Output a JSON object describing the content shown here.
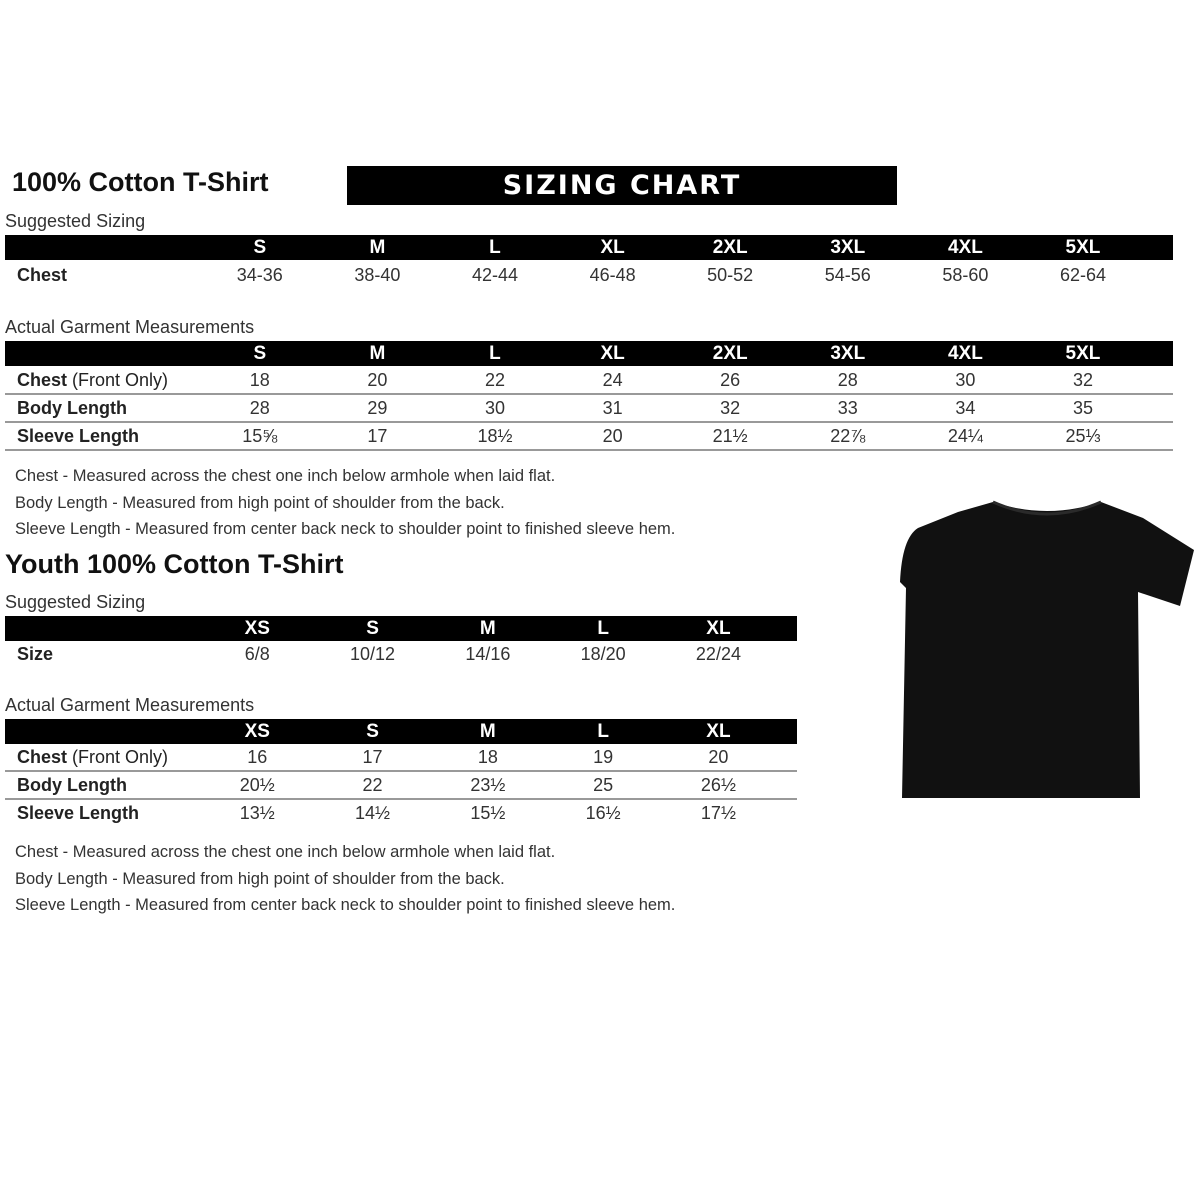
{
  "adult": {
    "title": "100% Cotton T-Shirt",
    "banner": "SIZING CHART",
    "suggested_label": "Suggested Sizing",
    "sizes": [
      "S",
      "M",
      "L",
      "XL",
      "2XL",
      "3XL",
      "4XL",
      "5XL"
    ],
    "suggested_rows": [
      {
        "label": "Chest",
        "suffix": "",
        "values": [
          "34-36",
          "38-40",
          "42-44",
          "46-48",
          "50-52",
          "54-56",
          "58-60",
          "62-64"
        ]
      }
    ],
    "actual_label": "Actual Garment Measurements",
    "actual_rows": [
      {
        "label": "Chest",
        "suffix": " (Front Only)",
        "values": [
          "18",
          "20",
          "22",
          "24",
          "26",
          "28",
          "30",
          "32"
        ]
      },
      {
        "label": "Body Length",
        "suffix": "",
        "values": [
          "28",
          "29",
          "30",
          "31",
          "32",
          "33",
          "34",
          "35"
        ]
      },
      {
        "label": "Sleeve Length",
        "suffix": "",
        "values": [
          "15⅝",
          "17",
          "18½",
          "20",
          "21½",
          "22⅞",
          "24¼",
          "25⅓"
        ]
      }
    ],
    "notes": [
      "Chest - Measured across the chest one inch below armhole when laid flat.",
      "Body Length - Measured from high point of shoulder from the back.",
      "Sleeve Length - Measured from center back neck to shoulder point to finished sleeve hem."
    ]
  },
  "youth": {
    "title": "Youth 100% Cotton T-Shirt",
    "suggested_label": "Suggested Sizing",
    "sizes": [
      "XS",
      "S",
      "M",
      "L",
      "XL"
    ],
    "suggested_rows": [
      {
        "label": "Size",
        "suffix": "",
        "values": [
          "6/8",
          "10/12",
          "14/16",
          "18/20",
          "22/24"
        ]
      }
    ],
    "actual_label": "Actual Garment Measurements",
    "actual_rows": [
      {
        "label": "Chest",
        "suffix": " (Front Only)",
        "values": [
          "16",
          "17",
          "18",
          "19",
          "20"
        ]
      },
      {
        "label": "Body Length",
        "suffix": "",
        "values": [
          "20½",
          "22",
          "23½",
          "25",
          "26½"
        ]
      },
      {
        "label": "Sleeve Length",
        "suffix": "",
        "values": [
          "13½",
          "14½",
          "15½",
          "16½",
          "17½"
        ]
      }
    ],
    "notes": [
      "Chest - Measured across the chest one inch below armhole when laid flat.",
      "Body Length - Measured from high point of shoulder from the back.",
      "Sleeve Length - Measured from center back neck to shoulder point to finished sleeve hem."
    ]
  },
  "image": {
    "icon": "t-shirt-icon",
    "color": "#111111"
  }
}
